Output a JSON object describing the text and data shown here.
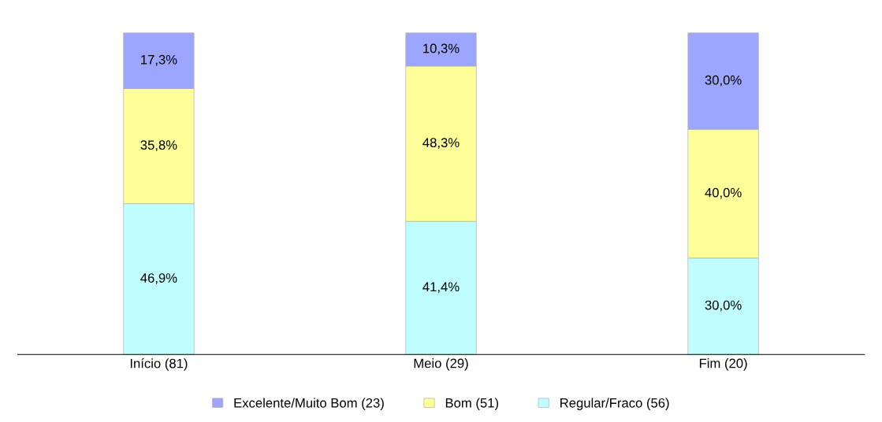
{
  "chart_data": {
    "type": "bar",
    "stacked": true,
    "categories": [
      "Início (81)",
      "Meio (29)",
      "Fim (20)"
    ],
    "series": [
      {
        "name": "Regular/Fraco (56)",
        "color": "#c0ffff",
        "values": [
          46.9,
          41.4,
          30.0
        ],
        "value_labels": [
          "46,9%",
          "41,4%",
          "30,0%"
        ]
      },
      {
        "name": "Bom (51)",
        "color": "#ffff99",
        "values": [
          35.8,
          48.3,
          40.0
        ],
        "value_labels": [
          "35,8%",
          "48,3%",
          "40,0%"
        ]
      },
      {
        "name": "Excelente/Muito Bom (23)",
        "color": "#9da6ff",
        "values": [
          17.3,
          10.3,
          30.0
        ],
        "value_labels": [
          "17,3%",
          "10,3%",
          "30,0%"
        ]
      }
    ],
    "legend": "bottom",
    "grid": false
  }
}
